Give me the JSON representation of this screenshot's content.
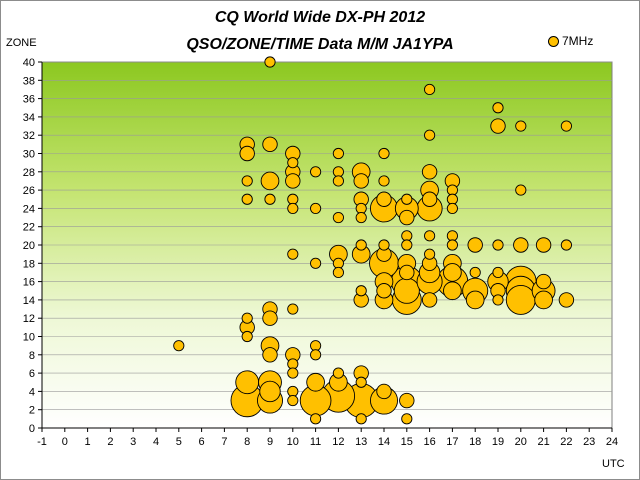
{
  "chart_data": {
    "type": "scatter",
    "title": "CQ World Wide DX-PH 2012",
    "subtitle": "QSO/ZONE/TIME Data M/M JA1YPA",
    "xlabel": "UTC",
    "ylabel": "ZONE",
    "xlim": [
      -1,
      24
    ],
    "ylim": [
      0,
      40
    ],
    "x_ticks": [
      -1,
      0,
      1,
      2,
      3,
      4,
      5,
      6,
      7,
      8,
      9,
      10,
      11,
      12,
      13,
      14,
      15,
      16,
      17,
      18,
      19,
      20,
      21,
      22,
      23,
      24
    ],
    "y_ticks": [
      0,
      2,
      4,
      6,
      8,
      10,
      12,
      14,
      16,
      18,
      20,
      22,
      24,
      26,
      28,
      30,
      32,
      34,
      36,
      38,
      40
    ],
    "grid": "horizontal",
    "background": "gradient yellow-green (top) to white (bottom)",
    "legend_position": "top-right",
    "series": [
      {
        "name": "7MHz",
        "color": "#ffc000",
        "points": [
          {
            "x": 5,
            "y": 9,
            "size": 1
          },
          {
            "x": 8,
            "y": 31,
            "size": 2
          },
          {
            "x": 8,
            "y": 30,
            "size": 2
          },
          {
            "x": 8,
            "y": 27,
            "size": 1
          },
          {
            "x": 8,
            "y": 25,
            "size": 1
          },
          {
            "x": 8,
            "y": 12,
            "size": 1
          },
          {
            "x": 8,
            "y": 11,
            "size": 2
          },
          {
            "x": 8,
            "y": 10,
            "size": 1
          },
          {
            "x": 8,
            "y": 5,
            "size": 5
          },
          {
            "x": 8,
            "y": 3,
            "size": 10
          },
          {
            "x": 9,
            "y": 40,
            "size": 1
          },
          {
            "x": 9,
            "y": 31,
            "size": 2
          },
          {
            "x": 9,
            "y": 27,
            "size": 3
          },
          {
            "x": 9,
            "y": 25,
            "size": 1
          },
          {
            "x": 9,
            "y": 13,
            "size": 2
          },
          {
            "x": 9,
            "y": 12,
            "size": 2
          },
          {
            "x": 9,
            "y": 9,
            "size": 3
          },
          {
            "x": 9,
            "y": 8,
            "size": 2
          },
          {
            "x": 9,
            "y": 5,
            "size": 5
          },
          {
            "x": 9,
            "y": 4,
            "size": 4
          },
          {
            "x": 9,
            "y": 3,
            "size": 6
          },
          {
            "x": 10,
            "y": 30,
            "size": 2
          },
          {
            "x": 10,
            "y": 29,
            "size": 1
          },
          {
            "x": 10,
            "y": 28,
            "size": 2
          },
          {
            "x": 10,
            "y": 27,
            "size": 2
          },
          {
            "x": 10,
            "y": 25,
            "size": 1
          },
          {
            "x": 10,
            "y": 24,
            "size": 1
          },
          {
            "x": 10,
            "y": 19,
            "size": 1
          },
          {
            "x": 10,
            "y": 13,
            "size": 1
          },
          {
            "x": 10,
            "y": 8,
            "size": 2
          },
          {
            "x": 10,
            "y": 7,
            "size": 1
          },
          {
            "x": 10,
            "y": 6,
            "size": 1
          },
          {
            "x": 10,
            "y": 4,
            "size": 1
          },
          {
            "x": 10,
            "y": 3,
            "size": 1
          },
          {
            "x": 11,
            "y": 28,
            "size": 1
          },
          {
            "x": 11,
            "y": 24,
            "size": 1
          },
          {
            "x": 11,
            "y": 18,
            "size": 1
          },
          {
            "x": 11,
            "y": 9,
            "size": 1
          },
          {
            "x": 11,
            "y": 8,
            "size": 1
          },
          {
            "x": 11,
            "y": 5,
            "size": 3
          },
          {
            "x": 11,
            "y": 3,
            "size": 9
          },
          {
            "x": 11,
            "y": 1,
            "size": 1
          },
          {
            "x": 12,
            "y": 30,
            "size": 1
          },
          {
            "x": 12,
            "y": 28,
            "size": 1
          },
          {
            "x": 12,
            "y": 27,
            "size": 1
          },
          {
            "x": 12,
            "y": 23,
            "size": 1
          },
          {
            "x": 12,
            "y": 19,
            "size": 3
          },
          {
            "x": 12,
            "y": 18,
            "size": 1
          },
          {
            "x": 12,
            "y": 17,
            "size": 1
          },
          {
            "x": 12,
            "y": 6,
            "size": 1
          },
          {
            "x": 12,
            "y": 5,
            "size": 3
          },
          {
            "x": 12,
            "y": 3.5,
            "size": 10
          },
          {
            "x": 13,
            "y": 28,
            "size": 3
          },
          {
            "x": 13,
            "y": 27,
            "size": 2
          },
          {
            "x": 13,
            "y": 25,
            "size": 2
          },
          {
            "x": 13,
            "y": 24,
            "size": 1
          },
          {
            "x": 13,
            "y": 23,
            "size": 1
          },
          {
            "x": 13,
            "y": 20,
            "size": 1
          },
          {
            "x": 13,
            "y": 19,
            "size": 3
          },
          {
            "x": 13,
            "y": 15,
            "size": 1
          },
          {
            "x": 13,
            "y": 14,
            "size": 2
          },
          {
            "x": 13,
            "y": 6,
            "size": 2
          },
          {
            "x": 13,
            "y": 5,
            "size": 1
          },
          {
            "x": 13,
            "y": 3,
            "size": 11
          },
          {
            "x": 13,
            "y": 1,
            "size": 1
          },
          {
            "x": 14,
            "y": 30,
            "size": 1
          },
          {
            "x": 14,
            "y": 27,
            "size": 1
          },
          {
            "x": 14,
            "y": 25,
            "size": 2
          },
          {
            "x": 14,
            "y": 24,
            "size": 7
          },
          {
            "x": 14,
            "y": 20,
            "size": 1
          },
          {
            "x": 14,
            "y": 19,
            "size": 2
          },
          {
            "x": 14,
            "y": 18,
            "size": 8
          },
          {
            "x": 14,
            "y": 16,
            "size": 3
          },
          {
            "x": 14,
            "y": 15,
            "size": 2
          },
          {
            "x": 14,
            "y": 14,
            "size": 3
          },
          {
            "x": 14,
            "y": 4,
            "size": 2
          },
          {
            "x": 14,
            "y": 3,
            "size": 7
          },
          {
            "x": 15,
            "y": 25,
            "size": 1
          },
          {
            "x": 15,
            "y": 24,
            "size": 5
          },
          {
            "x": 15,
            "y": 23,
            "size": 2
          },
          {
            "x": 15,
            "y": 21,
            "size": 1
          },
          {
            "x": 15,
            "y": 20,
            "size": 1
          },
          {
            "x": 15,
            "y": 18,
            "size": 3
          },
          {
            "x": 15,
            "y": 17,
            "size": 2
          },
          {
            "x": 15,
            "y": 16,
            "size": 9
          },
          {
            "x": 15,
            "y": 15,
            "size": 6
          },
          {
            "x": 15,
            "y": 14,
            "size": 8
          },
          {
            "x": 15,
            "y": 3,
            "size": 2
          },
          {
            "x": 15,
            "y": 1,
            "size": 1
          },
          {
            "x": 16,
            "y": 37,
            "size": 1
          },
          {
            "x": 16,
            "y": 32,
            "size": 1
          },
          {
            "x": 16,
            "y": 28,
            "size": 2
          },
          {
            "x": 16,
            "y": 26,
            "size": 3
          },
          {
            "x": 16,
            "y": 25,
            "size": 2
          },
          {
            "x": 16,
            "y": 24,
            "size": 6
          },
          {
            "x": 16,
            "y": 21,
            "size": 1
          },
          {
            "x": 16,
            "y": 19,
            "size": 1
          },
          {
            "x": 16,
            "y": 18,
            "size": 2
          },
          {
            "x": 16,
            "y": 17,
            "size": 4
          },
          {
            "x": 16,
            "y": 16,
            "size": 6
          },
          {
            "x": 16,
            "y": 14,
            "size": 2
          },
          {
            "x": 17,
            "y": 27,
            "size": 2
          },
          {
            "x": 17,
            "y": 26,
            "size": 1
          },
          {
            "x": 17,
            "y": 25,
            "size": 1
          },
          {
            "x": 17,
            "y": 24,
            "size": 1
          },
          {
            "x": 17,
            "y": 21,
            "size": 1
          },
          {
            "x": 17,
            "y": 20,
            "size": 1
          },
          {
            "x": 17,
            "y": 18,
            "size": 3
          },
          {
            "x": 17,
            "y": 17,
            "size": 3
          },
          {
            "x": 17,
            "y": 16,
            "size": 9
          },
          {
            "x": 17,
            "y": 15,
            "size": 3
          },
          {
            "x": 18,
            "y": 20,
            "size": 2
          },
          {
            "x": 18,
            "y": 17,
            "size": 1
          },
          {
            "x": 18,
            "y": 15,
            "size": 6
          },
          {
            "x": 18,
            "y": 14,
            "size": 3
          },
          {
            "x": 19,
            "y": 35,
            "size": 1
          },
          {
            "x": 19,
            "y": 33,
            "size": 2
          },
          {
            "x": 19,
            "y": 20,
            "size": 1
          },
          {
            "x": 19,
            "y": 17,
            "size": 1
          },
          {
            "x": 19,
            "y": 16,
            "size": 4
          },
          {
            "x": 19,
            "y": 15,
            "size": 2
          },
          {
            "x": 19,
            "y": 14,
            "size": 1
          },
          {
            "x": 20,
            "y": 33,
            "size": 1
          },
          {
            "x": 20,
            "y": 26,
            "size": 1
          },
          {
            "x": 20,
            "y": 20,
            "size": 2
          },
          {
            "x": 20,
            "y": 16,
            "size": 9
          },
          {
            "x": 20,
            "y": 15,
            "size": 8
          },
          {
            "x": 20,
            "y": 14,
            "size": 8
          },
          {
            "x": 21,
            "y": 20,
            "size": 2
          },
          {
            "x": 21,
            "y": 16,
            "size": 2
          },
          {
            "x": 21,
            "y": 15,
            "size": 5
          },
          {
            "x": 21,
            "y": 14,
            "size": 3
          },
          {
            "x": 22,
            "y": 33,
            "size": 1
          },
          {
            "x": 22,
            "y": 20,
            "size": 1
          },
          {
            "x": 22,
            "y": 14,
            "size": 2
          }
        ]
      }
    ]
  }
}
